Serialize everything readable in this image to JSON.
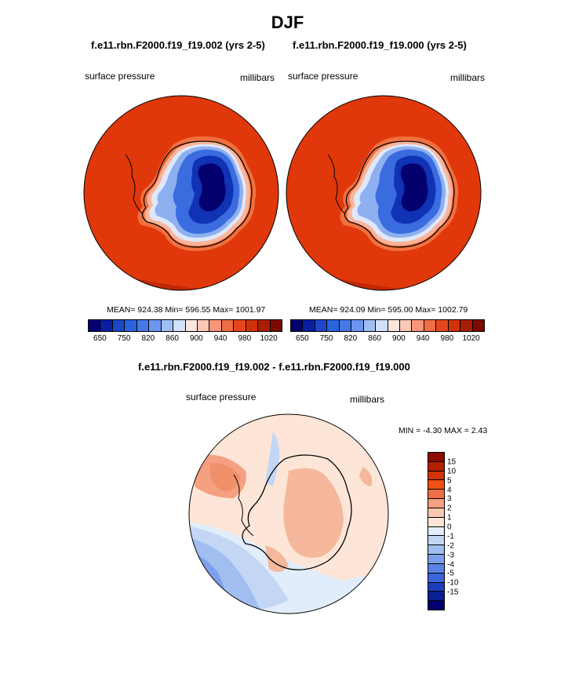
{
  "header": {
    "title": "DJF"
  },
  "panels": [
    {
      "title": "f.e11.rbn.F2000.f19_f19.002 (yrs 2-5)",
      "left_label": "surface pressure",
      "right_label": "millibars",
      "stats": "MEAN= 924.38  Min= 596.55  Max= 1001.97"
    },
    {
      "title": "f.e11.rbn.F2000.f19_f19.000 (yrs 2-5)",
      "left_label": "surface pressure",
      "right_label": "millibars",
      "stats": "MEAN= 924.09  Min= 595.00  Max= 1002.79"
    }
  ],
  "abs_colorbar": {
    "colors": [
      "#04006e",
      "#0a1ea0",
      "#1e46c8",
      "#2864dc",
      "#4678e6",
      "#6e96f0",
      "#a0bef5",
      "#d2e1fa",
      "#fae6dc",
      "#fac8b4",
      "#fa9678",
      "#f06e46",
      "#e6461e",
      "#d2320a",
      "#aa1e05",
      "#7d0a00"
    ],
    "ticks": [
      "650",
      "750",
      "820",
      "860",
      "900",
      "940",
      "980",
      "1020"
    ]
  },
  "diff": {
    "title": "f.e11.rbn.F2000.f19_f19.002 - f.e11.rbn.F2000.f19_f19.000",
    "left_label": "surface pressure",
    "right_label": "millibars",
    "stats": "MIN =  -4.30 MAX =   2.43",
    "colorbar": {
      "colors_top_to_bottom": [
        "#8c0a00",
        "#b41e05",
        "#d2320a",
        "#f05014",
        "#f06e46",
        "#f5a080",
        "#fac8b0",
        "#fde6d8",
        "#e1edfa",
        "#c3d7f5",
        "#a0bef0",
        "#7ea0ec",
        "#5a82e6",
        "#3c64dc",
        "#1e3cbe",
        "#0a1e96",
        "#02006e"
      ],
      "ticks": [
        "15",
        "10",
        "5",
        "4",
        "3",
        "2",
        "1",
        "0",
        "-1",
        "-2",
        "-3",
        "-4",
        "-5",
        "-10",
        "-15"
      ]
    }
  }
}
